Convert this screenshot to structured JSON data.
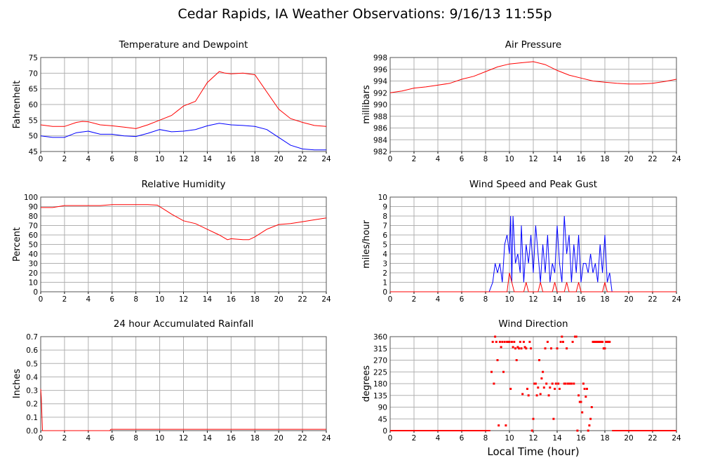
{
  "page_title": "Cedar Rapids, IA Weather Observations: 9/16/13 11:55p",
  "shared_xlabel": "Local Time (hour)",
  "colors": {
    "red": "#ff0000",
    "blue": "#0000ff",
    "grid": "#b0b0b0"
  },
  "chart_data": [
    {
      "id": "temp",
      "type": "line",
      "title": "Temperature and Dewpoint",
      "ylabel": "Fahrenheit",
      "xlim": [
        0,
        24
      ],
      "ylim": [
        45,
        75
      ],
      "xticks": [
        0,
        2,
        4,
        6,
        8,
        10,
        12,
        14,
        16,
        18,
        20,
        22,
        24
      ],
      "yticks": [
        45,
        50,
        55,
        60,
        65,
        70,
        75
      ],
      "grid": true,
      "series": [
        {
          "color": "#ff0000",
          "x": [
            0,
            1,
            2,
            3,
            3.5,
            4,
            5,
            6,
            7,
            8,
            9,
            10,
            11,
            12,
            13,
            14,
            15,
            15.5,
            16,
            17,
            18,
            19,
            20,
            21,
            22,
            23,
            24
          ],
          "y": [
            53.5,
            53,
            53,
            54.3,
            54.6,
            54.5,
            53.5,
            53.2,
            52.8,
            52.3,
            53.5,
            55,
            56.5,
            59.5,
            61,
            67,
            70.5,
            70,
            69.8,
            70,
            69.5,
            64,
            58.5,
            55.5,
            54.3,
            53.3,
            53
          ]
        },
        {
          "color": "#0000ff",
          "x": [
            0,
            1,
            2,
            3,
            4,
            5,
            6,
            7,
            8,
            9,
            10,
            11,
            12,
            13,
            14,
            15,
            16,
            17,
            18,
            19,
            20,
            21,
            22,
            23,
            24
          ],
          "y": [
            50,
            49.5,
            49.5,
            51,
            51.5,
            50.5,
            50.5,
            50,
            49.8,
            50.8,
            52,
            51.3,
            51.5,
            52,
            53.2,
            54,
            53.5,
            53.3,
            53,
            52,
            49.5,
            47,
            45.8,
            45.5,
            45.5
          ]
        }
      ]
    },
    {
      "id": "pressure",
      "type": "line",
      "title": "Air Pressure",
      "ylabel": "millibars",
      "xlim": [
        0,
        24
      ],
      "ylim": [
        982,
        998
      ],
      "xticks": [
        0,
        2,
        4,
        6,
        8,
        10,
        12,
        14,
        16,
        18,
        20,
        22,
        24
      ],
      "yticks": [
        982,
        984,
        986,
        988,
        990,
        992,
        994,
        996,
        998
      ],
      "grid": true,
      "series": [
        {
          "color": "#ff0000",
          "x": [
            0,
            1,
            2,
            3,
            4,
            5,
            6,
            7,
            8,
            9,
            10,
            11,
            12,
            13,
            14,
            15,
            16,
            17,
            18,
            19,
            20,
            21,
            22,
            23,
            24
          ],
          "y": [
            992,
            992.3,
            992.8,
            993,
            993.3,
            993.6,
            994.3,
            994.8,
            995.6,
            996.4,
            996.9,
            997.1,
            997.3,
            996.8,
            995.8,
            995,
            994.5,
            994,
            993.8,
            993.6,
            993.5,
            993.5,
            993.6,
            993.9,
            994.3
          ]
        }
      ]
    },
    {
      "id": "rh",
      "type": "line",
      "title": "Relative Humidity",
      "ylabel": "Percent",
      "xlim": [
        0,
        24
      ],
      "ylim": [
        0,
        100
      ],
      "xticks": [
        0,
        2,
        4,
        6,
        8,
        10,
        12,
        14,
        16,
        18,
        20,
        22,
        24
      ],
      "yticks": [
        0,
        10,
        20,
        30,
        40,
        50,
        60,
        70,
        80,
        90,
        100
      ],
      "grid": true,
      "series": [
        {
          "color": "#ff0000",
          "x": [
            0,
            1,
            2,
            3,
            4,
            5,
            6,
            7,
            8,
            9,
            9.8,
            10.5,
            11,
            12,
            13,
            14,
            15,
            15.7,
            16,
            17,
            17.5,
            18,
            19,
            20,
            21,
            22,
            23,
            24
          ],
          "y": [
            89,
            89,
            91,
            91,
            91,
            91,
            92,
            92,
            92,
            92,
            91.5,
            86,
            82,
            75,
            72,
            66,
            60,
            55,
            56,
            55,
            55,
            58,
            66,
            71,
            72,
            74,
            76,
            78
          ]
        }
      ]
    },
    {
      "id": "wind",
      "type": "line",
      "title": "Wind Speed and Peak Gust",
      "ylabel": "miles/hour",
      "xlim": [
        0,
        24
      ],
      "ylim": [
        0,
        10
      ],
      "xticks": [
        0,
        2,
        4,
        6,
        8,
        10,
        12,
        14,
        16,
        18,
        20,
        22,
        24
      ],
      "yticks": [
        0,
        1,
        2,
        3,
        4,
        5,
        6,
        7,
        8,
        9,
        10
      ],
      "grid": true,
      "series": [
        {
          "color": "#0000ff",
          "x": [
            0,
            8.3,
            8.6,
            8.8,
            9,
            9.2,
            9.4,
            9.6,
            9.8,
            10,
            10.1,
            10.2,
            10.3,
            10.5,
            10.7,
            10.9,
            11,
            11.2,
            11.4,
            11.6,
            11.8,
            12,
            12.2,
            12.4,
            12.6,
            12.8,
            13,
            13.2,
            13.4,
            13.6,
            13.8,
            14,
            14.2,
            14.4,
            14.6,
            14.8,
            15,
            15.2,
            15.4,
            15.6,
            15.8,
            16,
            16.2,
            16.4,
            16.6,
            16.8,
            17,
            17.2,
            17.4,
            17.6,
            17.8,
            18,
            18.2,
            18.4,
            18.6,
            24
          ],
          "y": [
            0,
            0,
            1,
            3,
            2,
            3,
            1,
            5,
            6,
            4,
            8,
            1,
            8,
            3,
            4,
            2,
            7,
            1,
            5,
            3,
            6,
            2,
            7,
            4,
            1,
            5,
            2,
            6,
            1,
            3,
            2,
            7,
            3,
            1,
            8,
            4,
            6,
            1,
            5,
            2,
            6,
            1,
            3,
            3,
            2,
            4,
            2,
            3,
            1,
            5,
            2,
            6,
            1,
            2,
            0,
            0
          ]
        },
        {
          "color": "#ff0000",
          "x": [
            0,
            9.8,
            10,
            10.2,
            10.4,
            11.2,
            11.4,
            11.6,
            12.4,
            12.6,
            12.8,
            13.6,
            13.8,
            14,
            14.6,
            14.8,
            15,
            15.6,
            15.8,
            16,
            17.8,
            18,
            18.2,
            24
          ],
          "y": [
            0,
            0,
            2,
            1,
            0,
            0,
            1,
            0,
            0,
            1,
            0,
            0,
            1,
            0,
            0,
            1,
            0,
            0,
            1,
            0,
            0,
            1,
            0,
            0
          ]
        }
      ]
    },
    {
      "id": "rain",
      "type": "line",
      "title": "24 hour Accumulated Rainfall",
      "ylabel": "Inches",
      "xlim": [
        0,
        24
      ],
      "ylim": [
        0,
        0.7
      ],
      "xticks": [
        0,
        2,
        4,
        6,
        8,
        10,
        12,
        14,
        16,
        18,
        20,
        22,
        24
      ],
      "yticks": [
        0.0,
        0.1,
        0.2,
        0.3,
        0.4,
        0.5,
        0.6,
        0.7
      ],
      "ytick_labels": [
        "0.0",
        "0.1",
        "0.2",
        "0.3",
        "0.4",
        "0.5",
        "0.6",
        "0.7"
      ],
      "grid": true,
      "series": [
        {
          "color": "#ff0000",
          "x": [
            0,
            0.05,
            0.15,
            0.3,
            5.8,
            5.9,
            24
          ],
          "y": [
            0.31,
            0.25,
            0.0,
            0.0,
            0.0,
            0.01,
            0.01
          ]
        }
      ]
    },
    {
      "id": "direction",
      "type": "scatter",
      "title": "Wind Direction",
      "ylabel": "degrees",
      "xlabel": "Local Time (hour)",
      "xlim": [
        0,
        24
      ],
      "ylim": [
        0,
        360
      ],
      "xticks": [
        0,
        2,
        4,
        6,
        8,
        10,
        12,
        14,
        16,
        18,
        20,
        22,
        24
      ],
      "yticks": [
        0,
        45,
        90,
        135,
        180,
        225,
        270,
        315,
        360
      ],
      "grid": true,
      "series": [
        {
          "color": "#ff0000",
          "baseline_zero": [
            [
              0,
              8.4
            ],
            [
              18.6,
              24
            ]
          ],
          "x": [
            8.5,
            8.6,
            8.7,
            8.8,
            8.9,
            9.0,
            9.1,
            9.2,
            9.3,
            9.4,
            9.5,
            9.6,
            9.7,
            9.8,
            9.9,
            10.0,
            10.1,
            10.2,
            10.3,
            10.4,
            10.5,
            10.6,
            10.7,
            10.8,
            10.9,
            11.0,
            11.1,
            11.2,
            11.3,
            11.4,
            11.5,
            11.6,
            11.7,
            11.8,
            11.9,
            12.0,
            12.1,
            12.2,
            12.3,
            12.4,
            12.5,
            12.6,
            12.7,
            12.8,
            12.9,
            13.0,
            13.1,
            13.2,
            13.3,
            13.4,
            13.5,
            13.6,
            13.7,
            13.8,
            13.9,
            14.0,
            14.1,
            14.2,
            14.3,
            14.4,
            14.5,
            14.6,
            14.7,
            14.8,
            14.9,
            15.0,
            15.1,
            15.2,
            15.3,
            15.4,
            15.5,
            15.6,
            15.7,
            15.8,
            15.9,
            16.0,
            16.1,
            16.2,
            16.3,
            16.4,
            16.5,
            16.6,
            16.7,
            16.8,
            16.9,
            17.0,
            17.1,
            17.2,
            17.3,
            17.4,
            17.5,
            17.6,
            17.7,
            17.8,
            17.9,
            18.0,
            18.1,
            18.2,
            18.3,
            18.4
          ],
          "y": [
            225,
            340,
            180,
            360,
            340,
            270,
            20,
            340,
            320,
            340,
            225,
            340,
            20,
            340,
            340,
            340,
            160,
            340,
            320,
            340,
            315,
            270,
            320,
            315,
            340,
            315,
            140,
            340,
            320,
            315,
            160,
            135,
            340,
            315,
            0,
            45,
            180,
            180,
            135,
            165,
            270,
            140,
            200,
            225,
            165,
            315,
            180,
            340,
            135,
            165,
            315,
            180,
            45,
            160,
            180,
            315,
            180,
            160,
            340,
            360,
            340,
            180,
            180,
            315,
            180,
            180,
            180,
            180,
            340,
            180,
            360,
            360,
            0,
            135,
            110,
            110,
            70,
            180,
            160,
            130,
            160,
            0,
            20,
            45,
            90,
            340,
            340,
            340,
            340,
            340,
            340,
            340,
            340,
            340,
            315,
            315,
            340,
            340,
            340,
            340
          ]
        }
      ]
    }
  ]
}
